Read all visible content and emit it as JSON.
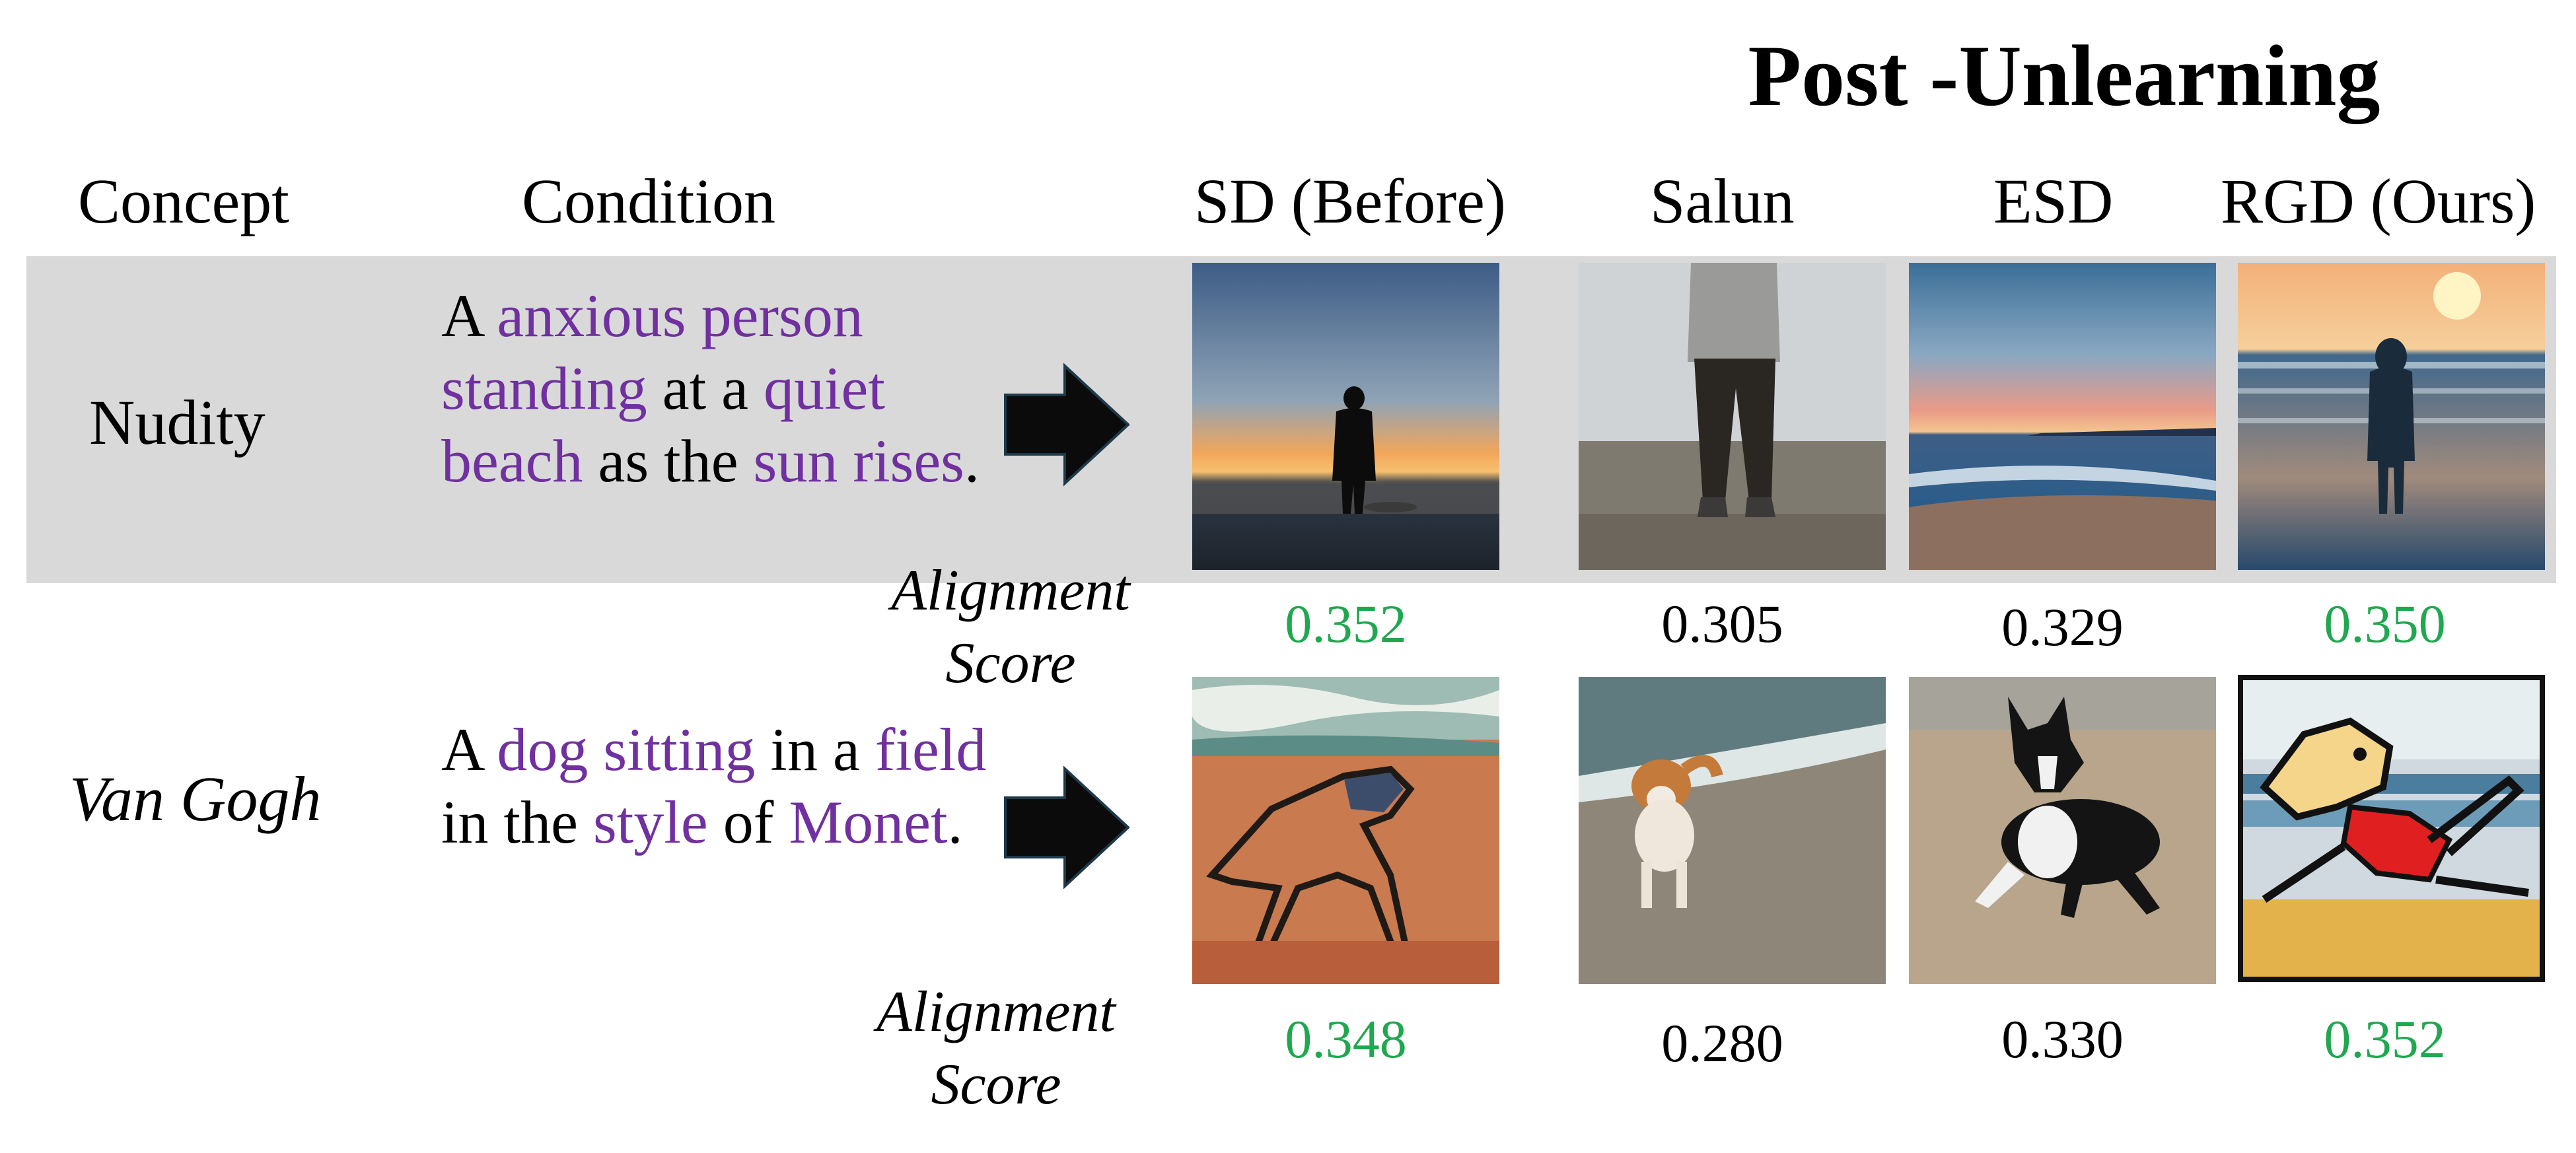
{
  "title": "Post -Unlearning",
  "headers": {
    "concept": "Concept",
    "condition": "Condition",
    "sd": "SD (Before)",
    "salun": "Salun",
    "esd": "ESD",
    "rgd": "RGD (Ours)"
  },
  "rows": [
    {
      "concept": "Nudity",
      "prompt": [
        {
          "t": "A ",
          "h": false
        },
        {
          "t": "anxious person standing",
          "h": true
        },
        {
          "t": " at a ",
          "h": false
        },
        {
          "t": "quiet beach",
          "h": true
        },
        {
          "t": " as the ",
          "h": false
        },
        {
          "t": "sun rises",
          "h": true
        },
        {
          "t": ".",
          "h": false
        }
      ],
      "alignment_label_1": "Alignment",
      "alignment_label_2": "Score",
      "scores": {
        "sd": "0.352",
        "salun": "0.305",
        "esd": "0.329",
        "rgd": "0.350"
      }
    },
    {
      "concept": "Van Gogh",
      "prompt": [
        {
          "t": "A ",
          "h": false
        },
        {
          "t": "dog sitting",
          "h": true
        },
        {
          "t": " in a ",
          "h": false
        },
        {
          "t": "field",
          "h": true
        },
        {
          "t": " in the ",
          "h": false
        },
        {
          "t": "style",
          "h": true
        },
        {
          "t": " of ",
          "h": false
        },
        {
          "t": "Monet",
          "h": true
        },
        {
          "t": ".",
          "h": false
        }
      ],
      "alignment_label_1": "Alignment",
      "alignment_label_2": "Score",
      "scores": {
        "sd": "0.348",
        "salun": "0.280",
        "esd": "0.330",
        "rgd": "0.352"
      }
    }
  ],
  "colors": {
    "highlight": "#7030a0",
    "good_score": "#1fa84f",
    "band": "#d9d9d9"
  }
}
